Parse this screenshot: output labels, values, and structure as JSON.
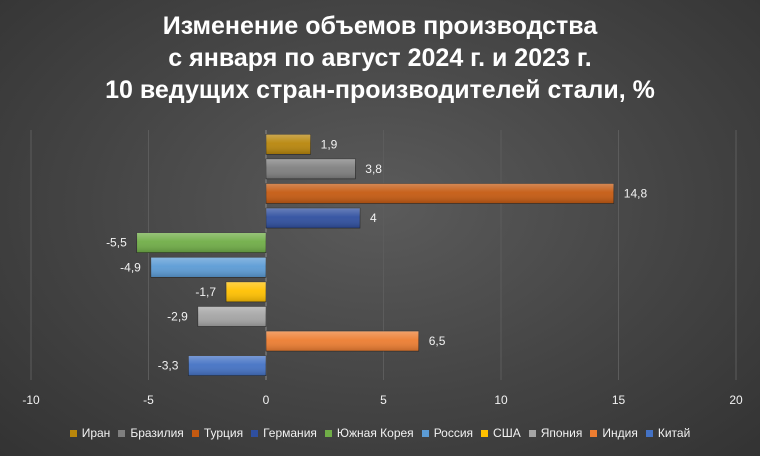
{
  "chart_data": {
    "type": "bar",
    "orientation": "horizontal",
    "title_lines": [
      "Изменение объемов производства",
      "с января по август 2024 г. и 2023 г.",
      "10 ведущих стран-производителей стали, %"
    ],
    "categories": [
      "Иран",
      "Бразилия",
      "Турция",
      "Германия",
      "Южная Корея",
      "Россия",
      "США",
      "Япония",
      "Индия",
      "Китай"
    ],
    "values": [
      1.9,
      3.8,
      14.8,
      4,
      -5.5,
      -4.9,
      -1.7,
      -2.9,
      6.5,
      -3.3
    ],
    "value_labels": [
      "1,9",
      "3,8",
      "14,8",
      "4",
      "-5,5",
      "-4,9",
      "-1,7",
      "-2,9",
      "6,5",
      "-3,3"
    ],
    "colors": [
      "#b8860b",
      "#7f7f7f",
      "#c55a11",
      "#2f4f9f",
      "#70ad47",
      "#5b9bd5",
      "#ffc000",
      "#a5a5a5",
      "#ed7d31",
      "#4472c4"
    ],
    "xlim": [
      -10,
      20
    ],
    "xticks": [
      -10,
      -5,
      0,
      5,
      10,
      15,
      20
    ],
    "grid": "vertical",
    "legend": "bottom"
  }
}
